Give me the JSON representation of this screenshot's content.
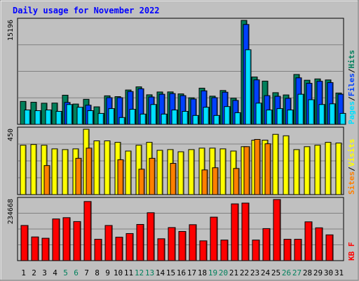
{
  "title": "Daily usage for November 2022",
  "colors": {
    "background": "#c0c0c0",
    "plot_bg": "#c0c0c0",
    "hits": "#00805c",
    "files": "#0040ff",
    "pages": "#00e0ff",
    "visits": "#ff8000",
    "sites": "#ffff00",
    "kbytes": "#ff0000",
    "title": "#0000ff",
    "weekend_day": "#00805c",
    "weekday": "#000000"
  },
  "chart_data": [
    {
      "type": "bar",
      "panel": "hits-files-pages",
      "ymax_label": "15196",
      "ylim": [
        0,
        15196
      ],
      "legend": [
        "Pages",
        "Files",
        "Hits"
      ],
      "legend_colors": [
        "#00e0ff",
        "#0040ff",
        "#00805c"
      ],
      "categories": [
        "1",
        "2",
        "3",
        "4",
        "5",
        "6",
        "7",
        "8",
        "9",
        "10",
        "11",
        "12",
        "13",
        "14",
        "15",
        "16",
        "17",
        "18",
        "19",
        "20",
        "21",
        "22",
        "23",
        "24",
        "25",
        "26",
        "27",
        "28",
        "29",
        "30",
        "31"
      ],
      "series": [
        {
          "name": "Hits",
          "values": [
            3350,
            3230,
            3090,
            3110,
            4260,
            2970,
            3660,
            2560,
            4170,
            4050,
            5020,
            5480,
            4320,
            4730,
            4740,
            4450,
            3880,
            5290,
            4120,
            4950,
            3820,
            15196,
            6920,
            6320,
            4630,
            4300,
            7290,
            6450,
            6640,
            6490,
            4580
          ]
        },
        {
          "name": "Files",
          "values": [
            0,
            0,
            0,
            0,
            3200,
            0,
            2800,
            0,
            3900,
            3900,
            4800,
            5200,
            4000,
            4400,
            4500,
            4200,
            3700,
            4900,
            3900,
            4700,
            3500,
            14600,
            6500,
            4200,
            4100,
            3800,
            6800,
            6000,
            6300,
            6100,
            4400
          ]
        },
        {
          "name": "Pages",
          "values": [
            2100,
            2000,
            2100,
            1900,
            2900,
            2500,
            2000,
            1600,
            2300,
            1000,
            2200,
            1500,
            2900,
            1500,
            2100,
            1900,
            1300,
            2500,
            1300,
            2600,
            1700,
            10900,
            3100,
            2100,
            2300,
            2100,
            4400,
            3600,
            2900,
            3000,
            1600
          ]
        }
      ]
    },
    {
      "type": "bar",
      "panel": "visits-sites",
      "ymax_label": "450",
      "ylim": [
        0,
        450
      ],
      "legend": [
        "Sites",
        "Visits"
      ],
      "legend_colors": [
        "#ff8000",
        "#ffff00"
      ],
      "categories": [
        "1",
        "2",
        "3",
        "4",
        "5",
        "6",
        "7",
        "8",
        "9",
        "10",
        "11",
        "12",
        "13",
        "14",
        "15",
        "16",
        "17",
        "18",
        "19",
        "20",
        "21",
        "22",
        "23",
        "24",
        "25",
        "26",
        "27",
        "28",
        "29",
        "30",
        "31"
      ],
      "series": [
        {
          "name": "Visits",
          "values": [
            340,
            345,
            340,
            315,
            310,
            315,
            450,
            370,
            370,
            360,
            300,
            340,
            360,
            305,
            310,
            295,
            310,
            320,
            320,
            315,
            300,
            330,
            375,
            375,
            415,
            405,
            310,
            330,
            340,
            360,
            355
          ]
        },
        {
          "name": "Sites",
          "values": [
            0,
            0,
            200,
            0,
            0,
            250,
            320,
            0,
            0,
            240,
            0,
            175,
            250,
            0,
            215,
            0,
            0,
            170,
            185,
            0,
            180,
            330,
            380,
            350,
            0,
            0,
            0,
            0,
            0,
            0,
            0
          ]
        }
      ]
    },
    {
      "type": "bar",
      "panel": "kbytes",
      "ymax_label": "234668",
      "ylim": [
        0,
        234668
      ],
      "legend": [
        "KB F"
      ],
      "legend_colors": [
        "#ff0000"
      ],
      "categories": [
        "1",
        "2",
        "3",
        "4",
        "5",
        "6",
        "7",
        "8",
        "9",
        "10",
        "11",
        "12",
        "13",
        "14",
        "15",
        "16",
        "17",
        "18",
        "19",
        "20",
        "21",
        "22",
        "23",
        "24",
        "25",
        "26",
        "27",
        "28",
        "29",
        "30",
        "31"
      ],
      "series": [
        {
          "name": "KB F",
          "values": [
            135000,
            91000,
            86000,
            160000,
            165000,
            150000,
            227000,
            82000,
            135000,
            90000,
            104000,
            139000,
            184000,
            84000,
            127000,
            112000,
            138000,
            76000,
            167000,
            79000,
            218000,
            221000,
            79000,
            123000,
            234668,
            82000,
            82000,
            149000,
            126000,
            99000,
            0
          ]
        }
      ]
    }
  ],
  "x_labels": {
    "days": [
      "1",
      "2",
      "3",
      "4",
      "5",
      "6",
      "7",
      "8",
      "9",
      "10",
      "11",
      "12",
      "13",
      "14",
      "15",
      "16",
      "17",
      "18",
      "19",
      "20",
      "21",
      "22",
      "23",
      "24",
      "25",
      "26",
      "27",
      "28",
      "29",
      "30",
      "31"
    ],
    "weekend": [
      5,
      6,
      12,
      13,
      19,
      20,
      26,
      27
    ]
  }
}
